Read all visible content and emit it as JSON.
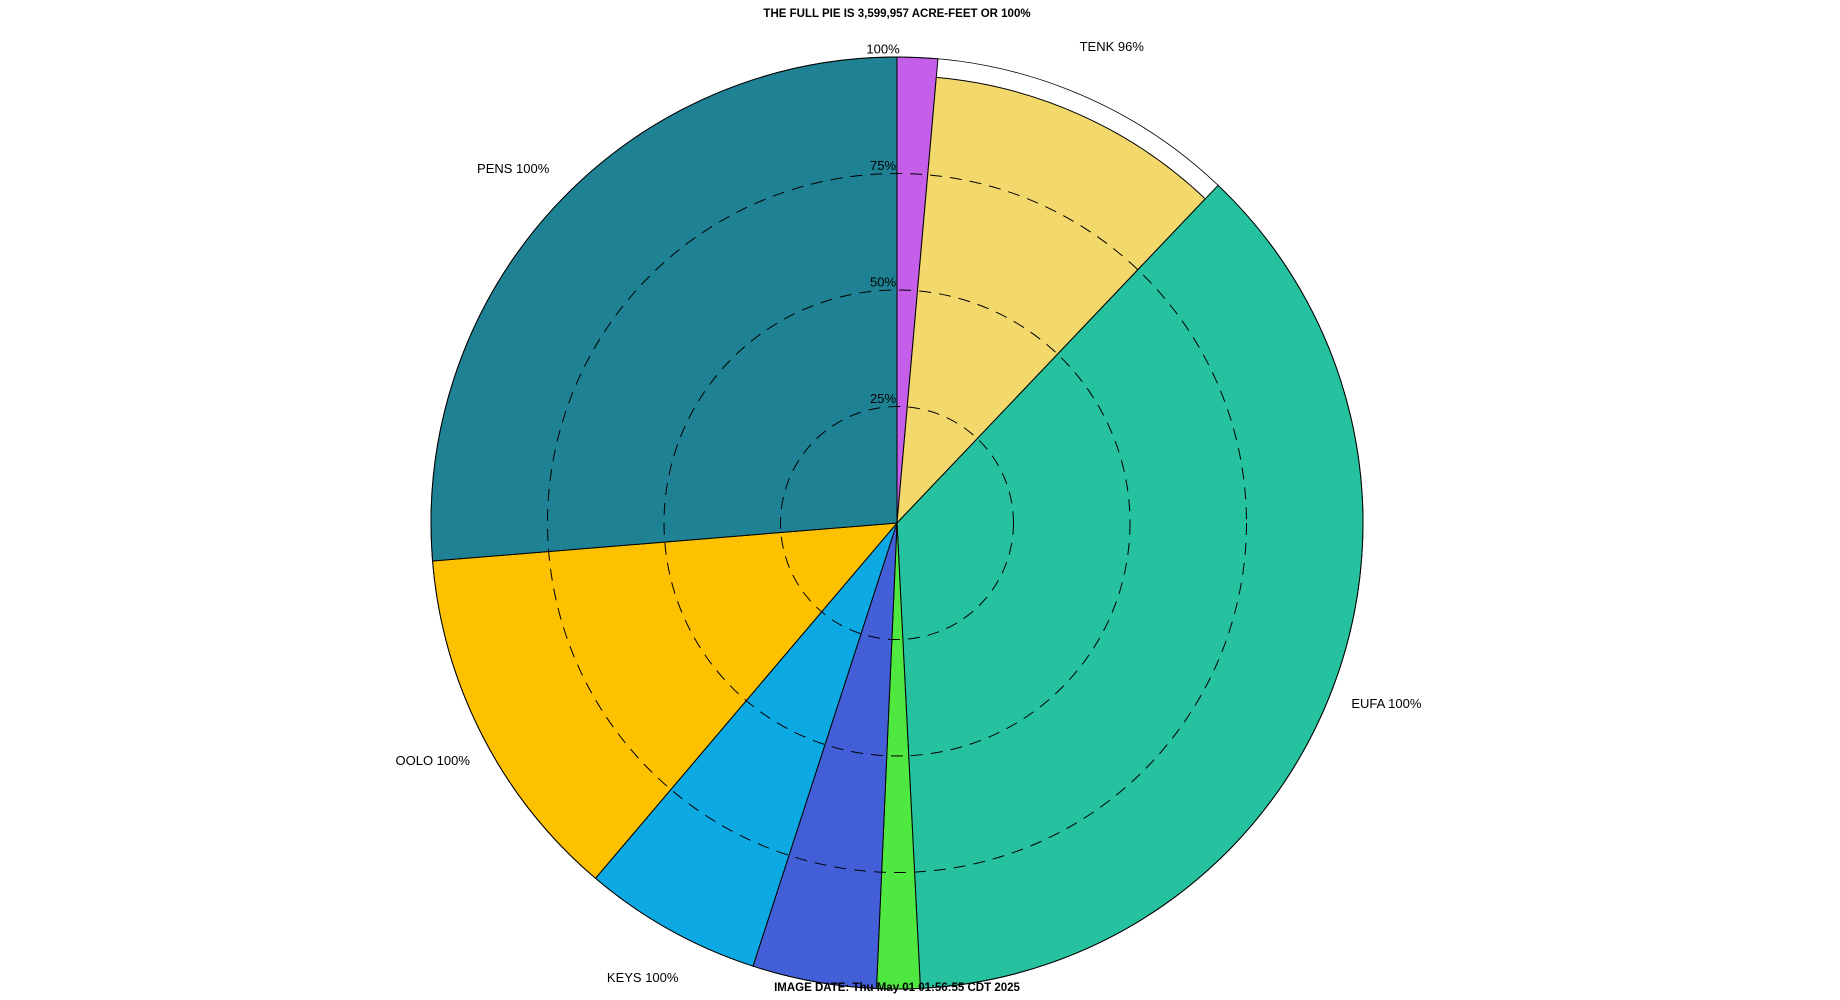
{
  "chart_data": {
    "type": "polar-pie",
    "title": "THE FULL PIE IS 3,599,957 ACRE-FEET OR 100%",
    "footer": "IMAGE DATE: Thu May 01 01:56:55 CDT 2025",
    "categories": [
      null,
      "TENK 96%",
      "EUFA 100%",
      null,
      null,
      "KEYS 100%",
      "OOLO 100%",
      "PENS 100%"
    ],
    "values": [
      1.4,
      10.7,
      37.1,
      1.5,
      4.3,
      6.2,
      12.5,
      26.3
    ],
    "fill": [
      100,
      96,
      100,
      100,
      100,
      100,
      100,
      100
    ],
    "colors": [
      "#c55ee8",
      "#f3d96b",
      "#26c19f",
      "#4fe840",
      "#435fd8",
      "#0da9e2",
      "#fdc100",
      "#1e8294"
    ],
    "rlim": [
      0,
      100
    ],
    "rticks": [
      {
        "value": 25,
        "label": "25%"
      },
      {
        "value": 50,
        "label": "50%"
      },
      {
        "value": 75,
        "label": "75%"
      },
      {
        "value": 100,
        "label": "100%"
      }
    ]
  }
}
